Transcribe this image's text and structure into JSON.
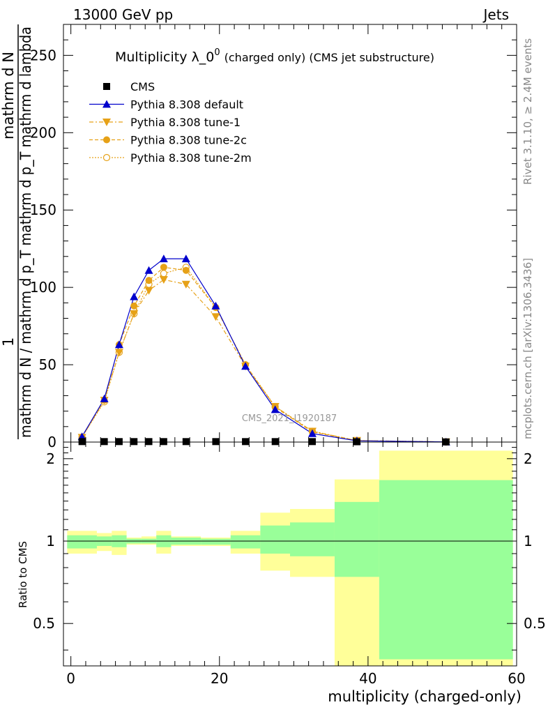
{
  "header": {
    "left": "13000 GeV pp",
    "right": "Jets"
  },
  "side_labels": {
    "rivet": "Rivet 3.1.10, ≥ 2.4M events",
    "mcplots": "mcplots.cern.ch [arXiv:1306.3436]"
  },
  "watermark": "CMS_2021_I1920187",
  "legend": {
    "title_main": "Multiplicity λ_0",
    "title_sup": "0",
    "title_rest": "(charged only) (CMS jet substructure)"
  },
  "ratio_ylabel": "Ratio to CMS",
  "colors": {
    "data": "#000000",
    "default": "#0000cc",
    "tunes": "#e6a117",
    "band_outer": "#ffff99",
    "band_inner": "#99ff99"
  },
  "chart_data": [
    {
      "type": "line",
      "panel": "main",
      "ylabel": {
        "numerator": "mathrm d N",
        "denominator": "mathrm d N / mathrm d p_T mathrm d p_T mathrm d lambda",
        "one": "1"
      },
      "xlim": [
        -1,
        60
      ],
      "ylim": [
        0,
        270
      ],
      "yticks": [
        0,
        50,
        100,
        150,
        200,
        250
      ],
      "series": [
        {
          "name": "CMS",
          "style": "square",
          "x": [
            1.5,
            4.5,
            6.5,
            8.5,
            10.5,
            12.5,
            15.5,
            19.5,
            23.5,
            27.5,
            32.5,
            38.5,
            50.5
          ],
          "values": [
            0.3,
            0.3,
            0.3,
            0.3,
            0.3,
            0.3,
            0.3,
            0.3,
            0.3,
            0.3,
            0.3,
            0.2,
            0.1
          ]
        },
        {
          "name": "Pythia 8.308 default",
          "style": "triangle-up",
          "x": [
            1.5,
            4.5,
            6.5,
            8.5,
            10.5,
            12.5,
            15.5,
            19.5,
            23.5,
            27.5,
            32.5,
            38.5,
            50.5
          ],
          "values": [
            3.5,
            28,
            63,
            94,
            111,
            118.5,
            118.5,
            88,
            49,
            21,
            5.5,
            0.8,
            0.1
          ]
        },
        {
          "name": "Pythia 8.308 tune-1",
          "style": "triangle-down",
          "x": [
            1.5,
            4.5,
            6.5,
            8.5,
            10.5,
            12.5,
            15.5,
            19.5,
            23.5,
            27.5,
            32.5,
            38.5,
            50.5
          ],
          "values": [
            3,
            27,
            58,
            83,
            98,
            105,
            102,
            81,
            49,
            23,
            7,
            1,
            0.1
          ]
        },
        {
          "name": "Pythia 8.308 tune-2c",
          "style": "circle-filled",
          "x": [
            1.5,
            4.5,
            6.5,
            8.5,
            10.5,
            12.5,
            15.5,
            19.5,
            23.5,
            27.5,
            32.5,
            38.5,
            50.5
          ],
          "values": [
            3.3,
            27,
            63,
            88,
            104.5,
            113,
            111,
            87,
            50,
            22.5,
            6.5,
            1,
            0.1
          ]
        },
        {
          "name": "Pythia 8.308 tune-2m",
          "style": "circle-open",
          "x": [
            1.5,
            4.5,
            6.5,
            8.5,
            10.5,
            12.5,
            15.5,
            19.5,
            23.5,
            27.5,
            32.5,
            38.5,
            50.5
          ],
          "values": [
            3.2,
            26,
            58,
            83,
            102,
            109,
            113,
            87,
            50,
            23,
            7,
            1,
            0.1
          ]
        }
      ]
    },
    {
      "type": "area",
      "panel": "ratio",
      "xlabel": "multiplicity (charged-only)",
      "ylabel": "Ratio to CMS",
      "xlim": [
        -1,
        60
      ],
      "ylim": [
        0.35,
        2.3
      ],
      "yticks": [
        0.5,
        1,
        2
      ],
      "xticks": [
        0,
        20,
        40,
        60
      ],
      "reference": 1,
      "bins": [
        {
          "x0": -0.5,
          "x1": 3.5,
          "outer": [
            0.9,
            1.09
          ],
          "inner": [
            0.94,
            1.05
          ]
        },
        {
          "x0": 3.5,
          "x1": 5.5,
          "outer": [
            0.92,
            1.07
          ],
          "inner": [
            0.96,
            1.04
          ]
        },
        {
          "x0": 5.5,
          "x1": 7.5,
          "outer": [
            0.89,
            1.09
          ],
          "inner": [
            0.95,
            1.05
          ]
        },
        {
          "x0": 7.5,
          "x1": 9.5,
          "outer": [
            0.97,
            1.03
          ],
          "inner": [
            0.98,
            1.02
          ]
        },
        {
          "x0": 9.5,
          "x1": 11.5,
          "outer": [
            0.97,
            1.04
          ],
          "inner": [
            0.98,
            1.02
          ]
        },
        {
          "x0": 11.5,
          "x1": 13.5,
          "outer": [
            0.9,
            1.09
          ],
          "inner": [
            0.95,
            1.05
          ]
        },
        {
          "x0": 13.5,
          "x1": 17.5,
          "outer": [
            0.96,
            1.04
          ],
          "inner": [
            0.97,
            1.03
          ]
        },
        {
          "x0": 17.5,
          "x1": 21.5,
          "outer": [
            0.96,
            1.03
          ],
          "inner": [
            0.97,
            1.02
          ]
        },
        {
          "x0": 21.5,
          "x1": 25.5,
          "outer": [
            0.9,
            1.09
          ],
          "inner": [
            0.94,
            1.05
          ]
        },
        {
          "x0": 25.5,
          "x1": 29.5,
          "outer": [
            0.78,
            1.27
          ],
          "inner": [
            0.9,
            1.14
          ]
        },
        {
          "x0": 29.5,
          "x1": 35.5,
          "outer": [
            0.74,
            1.31
          ],
          "inner": [
            0.88,
            1.17
          ]
        },
        {
          "x0": 35.5,
          "x1": 41.5,
          "outer": [
            0.35,
            1.68
          ],
          "inner": [
            0.74,
            1.39
          ]
        },
        {
          "x0": 41.5,
          "x1": 59.5,
          "outer": [
            0.35,
            2.14
          ],
          "inner": [
            0.37,
            1.67
          ]
        }
      ]
    }
  ]
}
